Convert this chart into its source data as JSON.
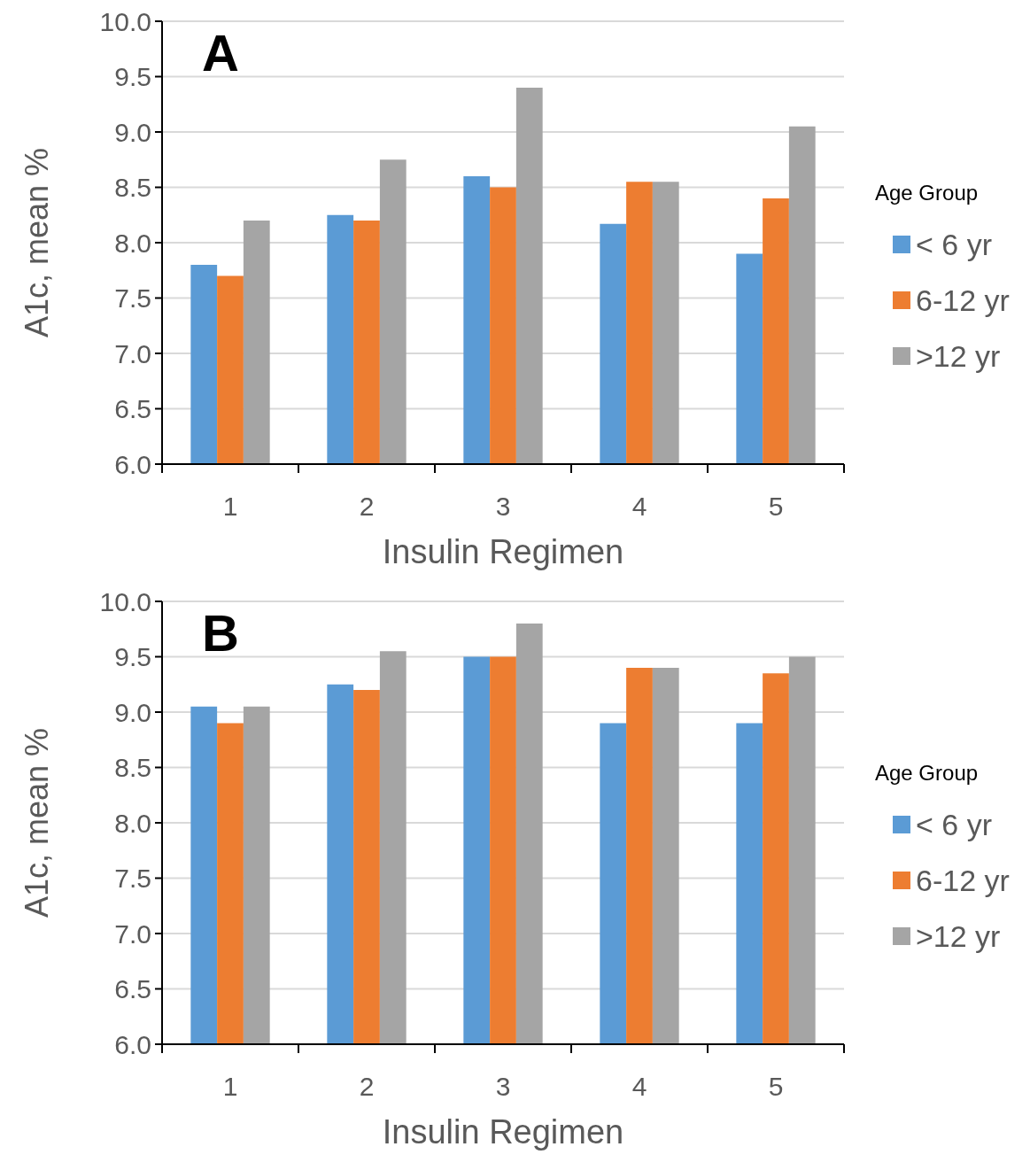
{
  "chart_data": [
    {
      "type": "bar",
      "title": "A",
      "xlabel": "Insulin Regimen",
      "ylabel": "A1c, mean %",
      "legend_title": "Age Group",
      "legend": "right",
      "grid": "y",
      "categories": [
        "1",
        "2",
        "3",
        "4",
        "5"
      ],
      "ylim": [
        6,
        10
      ],
      "yticks": [
        {
          "value": 6,
          "label": "6.0"
        },
        {
          "value": 6.5,
          "label": "6.5"
        },
        {
          "value": 7,
          "label": "7.0"
        },
        {
          "value": 7.5,
          "label": "7.5"
        },
        {
          "value": 8,
          "label": "8.0"
        },
        {
          "value": 8.5,
          "label": "8.5"
        },
        {
          "value": 9,
          "label": "9.0"
        },
        {
          "value": 9.5,
          "label": "9.5"
        },
        {
          "value": 10,
          "label": "10.0"
        }
      ],
      "series": [
        {
          "name": "< 6 yr",
          "color": "#5b9bd5",
          "values": [
            7.8,
            8.25,
            8.6,
            8.17,
            7.9
          ]
        },
        {
          "name": "6-12 yr",
          "color": "#ed7d31",
          "values": [
            7.7,
            8.2,
            8.5,
            8.55,
            8.4
          ]
        },
        {
          "name": ">12 yr",
          "color": "#a5a5a5",
          "values": [
            8.2,
            8.75,
            9.4,
            8.55,
            9.05
          ]
        }
      ]
    },
    {
      "type": "bar",
      "title": "B",
      "xlabel": "Insulin Regimen",
      "ylabel": "A1c, mean %",
      "legend_title": "Age Group",
      "legend": "right",
      "grid": "y",
      "categories": [
        "1",
        "2",
        "3",
        "4",
        "5"
      ],
      "ylim": [
        6,
        10
      ],
      "yticks": [
        {
          "value": 6,
          "label": "6.0"
        },
        {
          "value": 6.5,
          "label": "6.5"
        },
        {
          "value": 7,
          "label": "7.0"
        },
        {
          "value": 7.5,
          "label": "7.5"
        },
        {
          "value": 8,
          "label": "8.0"
        },
        {
          "value": 8.5,
          "label": "8.5"
        },
        {
          "value": 9,
          "label": "9.0"
        },
        {
          "value": 9.5,
          "label": "9.5"
        },
        {
          "value": 10,
          "label": "10.0"
        }
      ],
      "series": [
        {
          "name": "< 6 yr",
          "color": "#5b9bd5",
          "values": [
            9.05,
            9.25,
            9.5,
            8.9,
            8.9
          ]
        },
        {
          "name": "6-12 yr",
          "color": "#ed7d31",
          "values": [
            8.9,
            9.2,
            9.5,
            9.4,
            9.35
          ]
        },
        {
          "name": ">12 yr",
          "color": "#a5a5a5",
          "values": [
            9.05,
            9.55,
            9.8,
            9.4,
            9.5
          ]
        }
      ]
    }
  ]
}
